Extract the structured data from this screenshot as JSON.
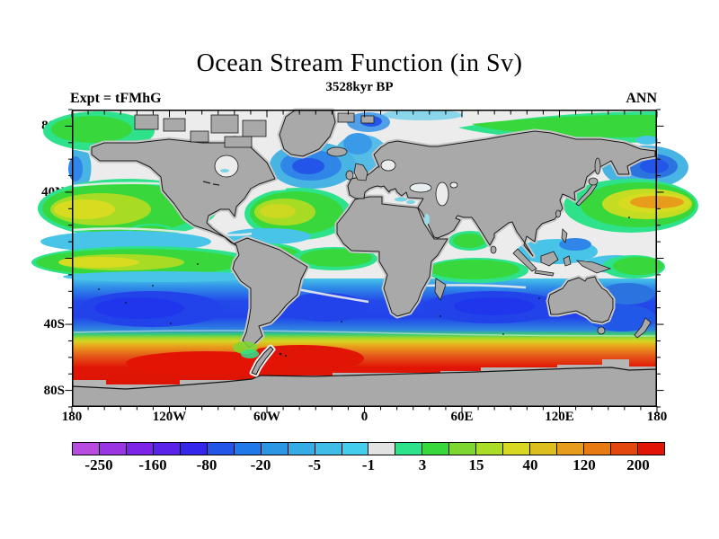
{
  "header": {
    "title": "Ocean Stream Function (in Sv)",
    "subtitle": "3528kyr BP",
    "experiment": "Expt = tFMhG",
    "season": "ANN"
  },
  "map_axes": {
    "lat_ticks": [
      {
        "label": "80N",
        "lat": 80
      },
      {
        "label": "40N",
        "lat": 40
      },
      {
        "label": "0",
        "lat": 0
      },
      {
        "label": "40S",
        "lat": -40
      },
      {
        "label": "80S",
        "lat": -80
      }
    ],
    "lon_ticks": [
      {
        "label": "180",
        "lon": -180
      },
      {
        "label": "120W",
        "lon": -120
      },
      {
        "label": "60W",
        "lon": -60
      },
      {
        "label": "0",
        "lon": 0
      },
      {
        "label": "60E",
        "lon": 60
      },
      {
        "label": "120E",
        "lon": 120
      },
      {
        "label": "180",
        "lon": 180
      }
    ],
    "minor_tick_interval_deg": 10,
    "land_color": "#a9a9a9",
    "land_mask_halo_color": "#c6c6c6",
    "near_zero_ocean_color": "#ececec"
  },
  "colorbar": {
    "tick_labels": [
      "-250",
      "-160",
      "-80",
      "-20",
      "-5",
      "-1",
      "3",
      "15",
      "40",
      "120",
      "200"
    ],
    "segment_colors": [
      "#b84ce0",
      "#9a35e4",
      "#7e23e8",
      "#5b23ea",
      "#3426ea",
      "#2356e8",
      "#2079e8",
      "#2b96e4",
      "#35ace4",
      "#3fbce8",
      "#44cdec",
      "#e2e2e2",
      "#2ee28c",
      "#38d83c",
      "#7cd830",
      "#abdc26",
      "#d8d822",
      "#dcbe1e",
      "#e89c1c",
      "#e87a14",
      "#e4470e",
      "#e01505"
    ],
    "border_color": "#000000"
  },
  "chart_data": {
    "type": "heatmap",
    "subtype": "filled-contour world map",
    "title": "Ocean Stream Function (in Sv)",
    "subtitle": "3528kyr BP",
    "experiment_label": "Expt = tFMhG",
    "season_label": "ANN",
    "units": "Sv",
    "projection": "equirectangular",
    "lon_range": [
      -180,
      180
    ],
    "lat_range": [
      -90,
      90
    ],
    "colorbar_tick_labels": [
      "-250",
      "-160",
      "-80",
      "-20",
      "-5",
      "-1",
      "3",
      "15",
      "40",
      "120",
      "200"
    ],
    "features": [
      {
        "region": "Antarctic Circumpolar Current belt (45S-70S, all longitudes)",
        "approx_value_sv": "120 to 250+",
        "color": "yellow-orange-red band"
      },
      {
        "region": "Intense ACC core downstream of Drake Passage (South Atlantic sector)",
        "approx_value_sv": "200 to 250+",
        "color": "bright red"
      },
      {
        "region": "Southern subtropical gyres, S Pacific / S Atlantic / S Indian (15S-45S)",
        "approx_value_sv": "-20 to -120",
        "color": "deep blue"
      },
      {
        "region": "North Pacific subtropical gyre (15N-45N)",
        "approx_value_sv": "15 to 40",
        "color": "green with yellow core"
      },
      {
        "region": "Kuroshio extension east of Japan (28N-35N)",
        "approx_value_sv": "40 to 120",
        "color": "yellow-orange tongue"
      },
      {
        "region": "North Atlantic subtropical gyre (15N-40N)",
        "approx_value_sv": "15 to 40",
        "color": "green with yellow-green core"
      },
      {
        "region": "North Atlantic subpolar gyre (45N-62N)",
        "approx_value_sv": "-5 to -80",
        "color": "blue"
      },
      {
        "region": "Northwest Pacific subpolar gyre near Kamchatka",
        "approx_value_sv": "-5 to -80",
        "color": "blue"
      },
      {
        "region": "Equatorial Pacific bands",
        "approx_value_sv": "-5 to 40",
        "color": "alternating cyan / green-yellow bands"
      },
      {
        "region": "South equatorial Indian Ocean (3S-12S)",
        "approx_value_sv": "3 to 15",
        "color": "green patch"
      },
      {
        "region": "Bering Sea / far north Pacific rim",
        "approx_value_sv": "3 to 15",
        "color": "green band"
      },
      {
        "region": "Arctic, coastal margins, Mediterranean",
        "approx_value_sv": "-1 to 3",
        "color": "white-gray (near zero)"
      },
      {
        "region": "Land (continents, Antarctica)",
        "approx_value_sv": "masked",
        "color": "gray"
      }
    ],
    "legend_position": "bottom horizontal discrete colorbar",
    "grid": false
  }
}
